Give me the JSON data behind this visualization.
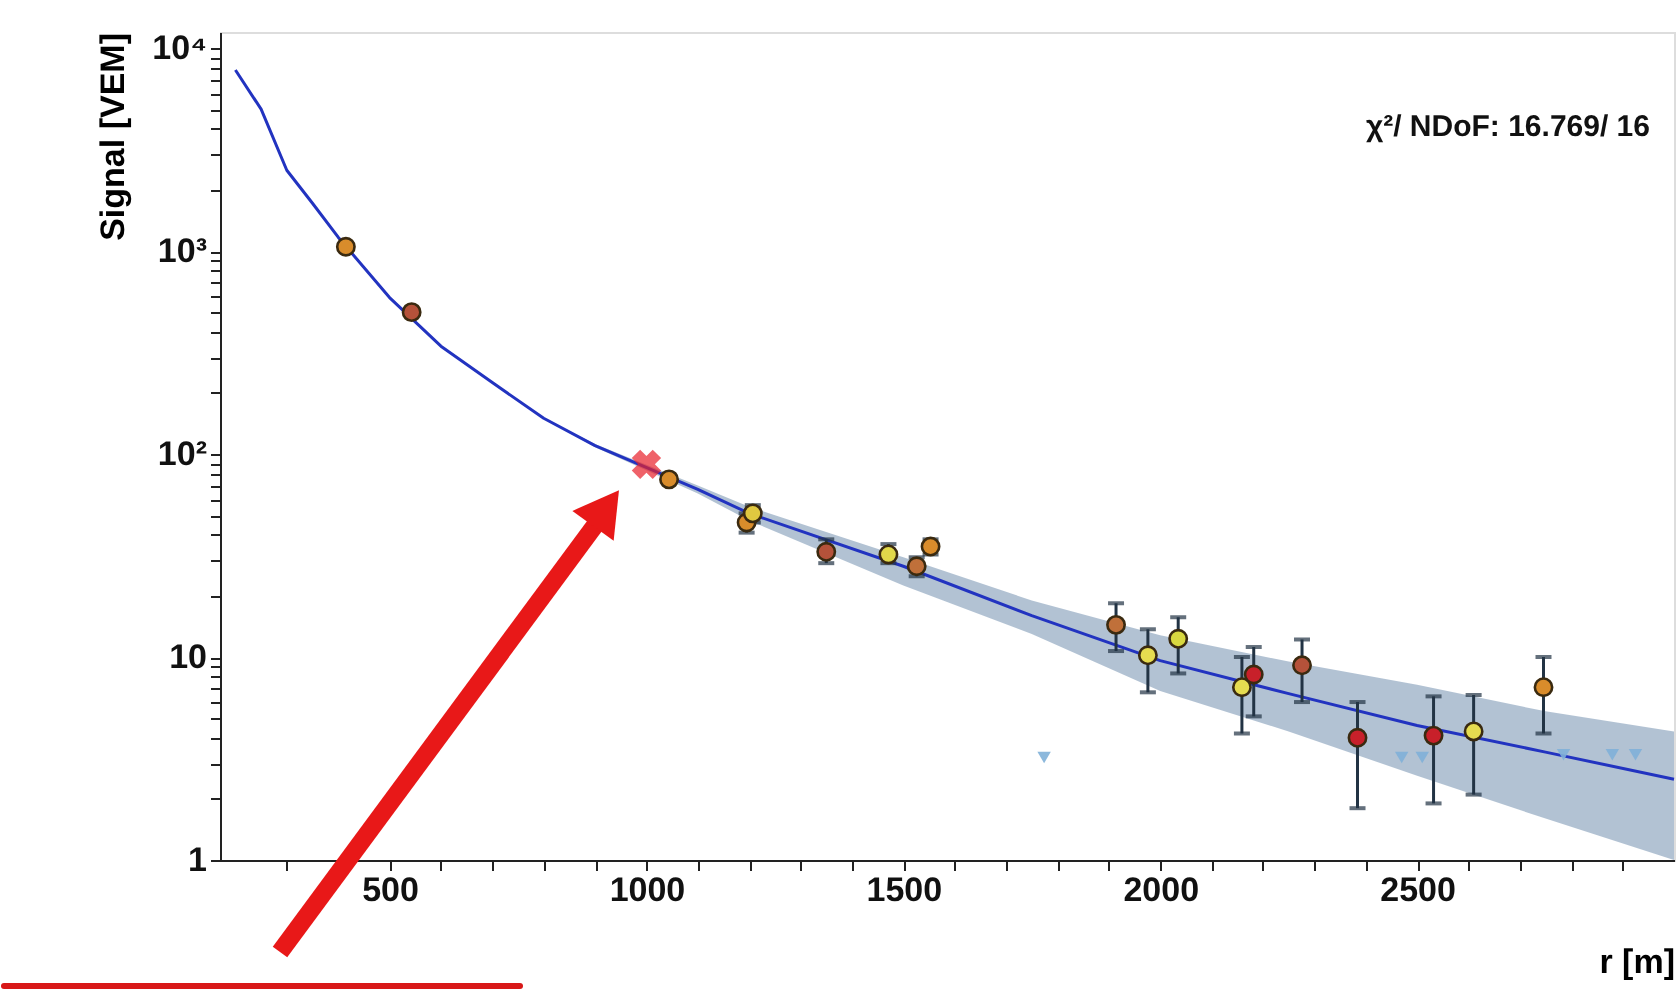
{
  "chart_data": {
    "type": "scatter",
    "xlabel": "r [m]",
    "ylabel": "Signal [VEM]",
    "log": "y",
    "grid": false,
    "xlim": [
      170,
      3000
    ],
    "ylim": [
      1,
      12000
    ],
    "xticks": [
      {
        "value": 300,
        "label": null
      },
      {
        "value": 400,
        "label": null
      },
      500,
      {
        "value": 600,
        "label": null
      },
      {
        "value": 700,
        "label": null
      },
      {
        "value": 800,
        "label": null
      },
      {
        "value": 900,
        "label": null
      },
      1000,
      {
        "value": 1100,
        "label": null
      },
      {
        "value": 1200,
        "label": null
      },
      {
        "value": 1300,
        "label": null
      },
      {
        "value": 1400,
        "label": null
      },
      1500,
      {
        "value": 1600,
        "label": null
      },
      {
        "value": 1700,
        "label": null
      },
      {
        "value": 1800,
        "label": null
      },
      {
        "value": 1900,
        "label": null
      },
      2000,
      {
        "value": 2100,
        "label": null
      },
      {
        "value": 2200,
        "label": null
      },
      {
        "value": 2300,
        "label": null
      },
      {
        "value": 2400,
        "label": null
      },
      2500,
      {
        "value": 2600,
        "label": null
      },
      {
        "value": 2700,
        "label": null
      },
      {
        "value": 2800,
        "label": null
      },
      {
        "value": 2900,
        "label": null
      }
    ],
    "yticks": [
      1,
      {
        "value": 2,
        "label": null
      },
      {
        "value": 3,
        "label": null
      },
      {
        "value": 4,
        "label": null
      },
      {
        "value": 5,
        "label": null
      },
      {
        "value": 6,
        "label": null
      },
      {
        "value": 7,
        "label": null
      },
      {
        "value": 8,
        "label": null
      },
      {
        "value": 9,
        "label": null
      },
      10,
      {
        "value": 20,
        "label": null
      },
      {
        "value": 30,
        "label": null
      },
      {
        "value": 40,
        "label": null
      },
      {
        "value": 50,
        "label": null
      },
      {
        "value": 60,
        "label": null
      },
      {
        "value": 70,
        "label": null
      },
      {
        "value": 80,
        "label": null
      },
      {
        "value": 90,
        "label": null
      },
      {
        "value": 100,
        "label": "10²"
      },
      {
        "value": 200,
        "label": null
      },
      {
        "value": 300,
        "label": null
      },
      {
        "value": 400,
        "label": null
      },
      {
        "value": 500,
        "label": null
      },
      {
        "value": 600,
        "label": null
      },
      {
        "value": 700,
        "label": null
      },
      {
        "value": 800,
        "label": null
      },
      {
        "value": 900,
        "label": null
      },
      {
        "value": 1000,
        "label": "10³"
      },
      {
        "value": 2000,
        "label": null
      },
      {
        "value": 3000,
        "label": null
      },
      {
        "value": 4000,
        "label": null
      },
      {
        "value": 5000,
        "label": null
      },
      {
        "value": 6000,
        "label": null
      },
      {
        "value": 7000,
        "label": null
      },
      {
        "value": 8000,
        "label": null
      },
      {
        "value": 9000,
        "label": null
      },
      {
        "value": 10000,
        "label": "10⁴"
      }
    ],
    "annotations": [
      "χ²/ NDoF: 16.769/ 16"
    ],
    "series": [
      {
        "type": "line",
        "color": "#2233c0",
        "line_style": "solid",
        "marker": "none",
        "x": [
          200,
          250,
          300,
          350,
          400,
          500,
          600,
          700,
          800,
          900,
          1100,
          1200,
          1500,
          1750,
          2000,
          2250,
          2500,
          2750,
          3000
        ],
        "values": [
          7800,
          5000,
          2500,
          1720,
          1170,
          590,
          340,
          225,
          150,
          110,
          67,
          51,
          28,
          16,
          9.6,
          6.6,
          4.6,
          3.4,
          2.5
        ],
        "lower": [
          7800,
          5000,
          2500,
          1720,
          1170,
          590,
          340,
          225,
          150,
          108,
          64,
          47,
          22.5,
          13,
          6.8,
          4.3,
          2.6,
          1.6,
          1
        ],
        "upper": [
          7800,
          5000,
          2500,
          1720,
          1170,
          590,
          340,
          225,
          150,
          112,
          70,
          55,
          31,
          19,
          12.8,
          9.5,
          7.3,
          5.4,
          4.3
        ]
      },
      {
        "marker": "circle",
        "x": [
          415,
          543,
          1044,
          1195,
          1207,
          1350,
          1471,
          1526,
          1553,
          1914,
          1976,
          2035,
          2159,
          2182,
          2276,
          2384,
          2532,
          2610,
          2746
        ],
        "values": [
          1050,
          500,
          75,
          46,
          51,
          33,
          32,
          28,
          35,
          14.4,
          10.2,
          12.3,
          7.1,
          8.2,
          9.1,
          4.0,
          4.1,
          4.3,
          7.1
        ],
        "colors": [
          "#d98c2b",
          "#b5523a",
          "#d98c2b",
          "#d98c2b",
          "#e0c840",
          "#b5523a",
          "#e0d84a",
          "#c0703a",
          "#d98c2b",
          "#c0703a",
          "#e6dc50",
          "#d8d840",
          "#e6dc50",
          "#c8202a",
          "#b5523a",
          "#c8202a",
          "#c8202a",
          "#e6dc50",
          "#d98c2b"
        ],
        "errors": [
          null,
          null,
          null,
          [
            41,
            51
          ],
          [
            46,
            56
          ],
          [
            29,
            38
          ],
          [
            29,
            36
          ],
          [
            25,
            31
          ],
          [
            32,
            38
          ],
          [
            10.7,
            18.4
          ],
          [
            6.7,
            13.7
          ],
          [
            8.3,
            15.7
          ],
          [
            4.2,
            10
          ],
          [
            5.1,
            11.2
          ],
          [
            6.0,
            12.2
          ],
          [
            1.8,
            6.0
          ],
          [
            1.9,
            6.4
          ],
          [
            2.1,
            6.5
          ],
          [
            4.2,
            10
          ]
        ]
      },
      {
        "marker": "triangle",
        "color": "#7fb0d8",
        "x": [
          1774,
          2470,
          2510,
          2785,
          2880,
          2925
        ],
        "values": [
          3.2,
          3.2,
          3.2,
          3.3,
          3.3,
          3.3
        ]
      },
      {
        "marker": "cross",
        "color": "#e8202a",
        "x": [
          1000
        ],
        "values": [
          89
        ]
      }
    ]
  }
}
